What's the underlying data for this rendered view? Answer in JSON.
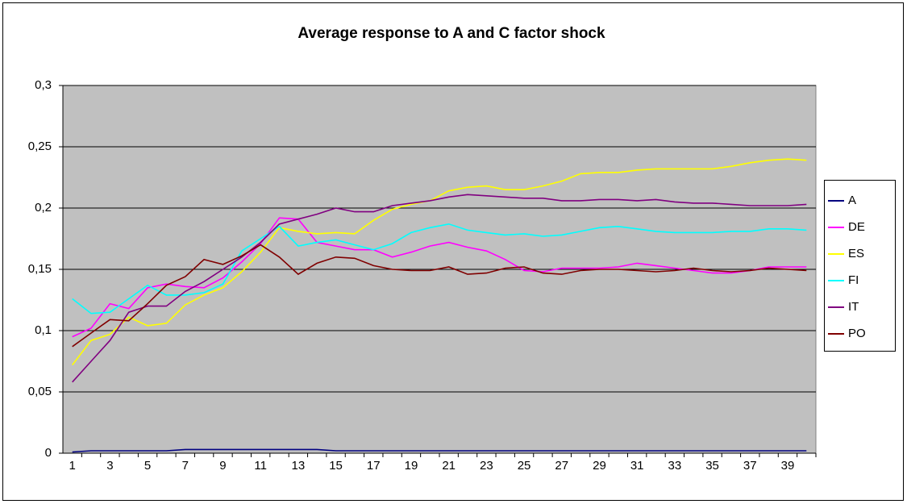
{
  "chart_data": {
    "type": "line",
    "title": "Average response to A and C factor shock",
    "categories": [
      1,
      null,
      3,
      null,
      5,
      null,
      7,
      null,
      9,
      null,
      11,
      null,
      13,
      null,
      15,
      null,
      17,
      null,
      19,
      null,
      21,
      null,
      23,
      null,
      25,
      null,
      27,
      null,
      29,
      null,
      31,
      null,
      33,
      null,
      35,
      null,
      37,
      null,
      39,
      null
    ],
    "ylim": [
      0,
      0.3
    ],
    "yticks": [
      0,
      {
        "value": 0.05,
        "label": "0,05"
      },
      {
        "value": 0.1,
        "label": "0,1"
      },
      {
        "value": 0.15,
        "label": "0,15"
      },
      {
        "value": 0.2,
        "label": "0,2"
      },
      {
        "value": 0.25,
        "label": "0,25"
      },
      {
        "value": 0.3,
        "label": "0,3"
      }
    ],
    "grid": true,
    "legend": "right",
    "series": [
      {
        "name": "A",
        "color": "#000080",
        "values": [
          0.001,
          0.002,
          0.002,
          0.002,
          0.002,
          0.002,
          0.003,
          0.003,
          0.003,
          0.003,
          0.003,
          0.003,
          0.003,
          0.003,
          0.002,
          0.002,
          0.002,
          0.002,
          0.002,
          0.002,
          0.002,
          0.002,
          0.002,
          0.002,
          0.002,
          0.002,
          0.002,
          0.002,
          0.002,
          0.002,
          0.002,
          0.002,
          0.002,
          0.002,
          0.002,
          0.002,
          0.002,
          0.002,
          0.002,
          0.002
        ]
      },
      {
        "name": "DE",
        "color": "#ff00ff",
        "values": [
          0.095,
          0.102,
          0.122,
          0.118,
          0.135,
          0.138,
          0.136,
          0.135,
          0.143,
          0.156,
          0.171,
          0.192,
          0.191,
          0.172,
          0.169,
          0.166,
          0.166,
          0.16,
          0.164,
          0.169,
          0.172,
          0.168,
          0.165,
          0.158,
          0.149,
          0.148,
          0.151,
          0.151,
          0.151,
          0.152,
          0.155,
          0.153,
          0.151,
          0.149,
          0.147,
          0.147,
          0.149,
          0.152,
          0.152,
          0.152
        ]
      },
      {
        "name": "ES",
        "color": "#ffff00",
        "values": [
          0.072,
          0.092,
          0.097,
          0.111,
          0.104,
          0.106,
          0.121,
          0.129,
          0.135,
          0.148,
          0.164,
          0.184,
          0.181,
          0.179,
          0.18,
          0.179,
          0.19,
          0.199,
          0.203,
          0.206,
          0.214,
          0.217,
          0.218,
          0.215,
          0.215,
          0.218,
          0.222,
          0.228,
          0.229,
          0.229,
          0.231,
          0.232,
          0.232,
          0.232,
          0.232,
          0.234,
          0.237,
          0.239,
          0.24,
          0.239
        ]
      },
      {
        "name": "FI",
        "color": "#00ffff",
        "values": [
          0.126,
          0.114,
          0.115,
          0.126,
          0.137,
          0.129,
          0.129,
          0.131,
          0.138,
          0.165,
          0.175,
          0.185,
          0.169,
          0.172,
          0.174,
          0.17,
          0.166,
          0.171,
          0.18,
          0.184,
          0.187,
          0.182,
          0.18,
          0.178,
          0.179,
          0.177,
          0.178,
          0.181,
          0.184,
          0.185,
          0.183,
          0.181,
          0.18,
          0.18,
          0.18,
          0.181,
          0.181,
          0.183,
          0.183,
          0.182
        ]
      },
      {
        "name": "IT",
        "color": "#800080",
        "values": [
          0.058,
          0.075,
          0.092,
          0.115,
          0.12,
          0.12,
          0.132,
          0.14,
          0.15,
          0.16,
          0.172,
          0.187,
          0.191,
          0.195,
          0.2,
          0.197,
          0.197,
          0.202,
          0.204,
          0.206,
          0.209,
          0.211,
          0.21,
          0.209,
          0.208,
          0.208,
          0.206,
          0.206,
          0.207,
          0.207,
          0.206,
          0.207,
          0.205,
          0.204,
          0.204,
          0.203,
          0.202,
          0.202,
          0.202,
          0.203
        ]
      },
      {
        "name": "PO",
        "color": "#800000",
        "values": [
          0.087,
          0.098,
          0.109,
          0.108,
          0.122,
          0.137,
          0.144,
          0.158,
          0.154,
          0.161,
          0.17,
          0.16,
          0.146,
          0.155,
          0.16,
          0.159,
          0.153,
          0.15,
          0.149,
          0.149,
          0.152,
          0.146,
          0.147,
          0.151,
          0.152,
          0.147,
          0.146,
          0.149,
          0.15,
          0.15,
          0.149,
          0.148,
          0.149,
          0.151,
          0.149,
          0.148,
          0.149,
          0.151,
          0.15,
          0.149
        ]
      }
    ]
  }
}
